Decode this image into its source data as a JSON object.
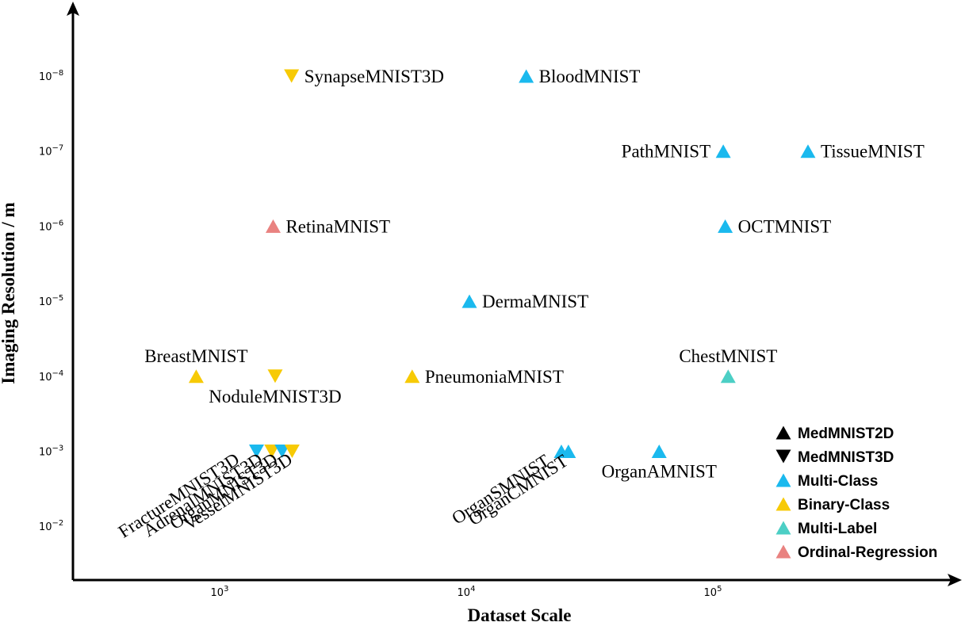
{
  "chart_data": {
    "type": "scatter",
    "xlabel": "Dataset Scale",
    "ylabel": "Imaging Resolution / m",
    "xscale": "log",
    "yscale": "log",
    "y_inverted": true,
    "xlim": [
      300,
      1000000
    ],
    "ylim": [
      0.1,
      1e-09
    ],
    "x_ticks": [
      {
        "value": 1000,
        "base": "10",
        "exp": "3"
      },
      {
        "value": 10000,
        "base": "10",
        "exp": "4"
      },
      {
        "value": 100000,
        "base": "10",
        "exp": "5"
      }
    ],
    "y_ticks": [
      {
        "value": 1e-08,
        "base": "10",
        "exp": "−8"
      },
      {
        "value": 1e-07,
        "base": "10",
        "exp": "−7"
      },
      {
        "value": 1e-06,
        "base": "10",
        "exp": "−6"
      },
      {
        "value": 1e-05,
        "base": "10",
        "exp": "−5"
      },
      {
        "value": 0.0001,
        "base": "10",
        "exp": "−4"
      },
      {
        "value": 0.001,
        "base": "10",
        "exp": "−3"
      },
      {
        "value": 0.01,
        "base": "10",
        "exp": "−2"
      }
    ],
    "colors": {
      "multi_class": "#1ab9ee",
      "binary_class": "#f7ca05",
      "multi_label": "#4ccfc5",
      "ordinal_regression": "#e98280"
    },
    "points": [
      {
        "name": "SynapseMNIST3D",
        "x": 1900,
        "y": 1e-08,
        "dim": "3D",
        "task": "binary_class",
        "label_pos": "right"
      },
      {
        "name": "BloodMNIST",
        "x": 17000,
        "y": 1e-08,
        "dim": "2D",
        "task": "multi_class",
        "label_pos": "right"
      },
      {
        "name": "PathMNIST",
        "x": 107000,
        "y": 1e-07,
        "dim": "2D",
        "task": "multi_class",
        "label_pos": "left"
      },
      {
        "name": "TissueMNIST",
        "x": 236000,
        "y": 1e-07,
        "dim": "2D",
        "task": "multi_class",
        "label_pos": "right"
      },
      {
        "name": "RetinaMNIST",
        "x": 1600,
        "y": 1e-06,
        "dim": "2D",
        "task": "ordinal_regression",
        "label_pos": "right"
      },
      {
        "name": "OCTMNIST",
        "x": 109000,
        "y": 1e-06,
        "dim": "2D",
        "task": "multi_class",
        "label_pos": "right"
      },
      {
        "name": "DermaMNIST",
        "x": 10000,
        "y": 1e-05,
        "dim": "2D",
        "task": "multi_class",
        "label_pos": "right"
      },
      {
        "name": "BreastMNIST",
        "x": 780,
        "y": 0.0001,
        "dim": "2D",
        "task": "binary_class",
        "label_pos": "above"
      },
      {
        "name": "NoduleMNIST3D",
        "x": 1630,
        "y": 0.0001,
        "dim": "3D",
        "task": "binary_class",
        "label_pos": "below"
      },
      {
        "name": "PneumoniaMNIST",
        "x": 5860,
        "y": 0.0001,
        "dim": "2D",
        "task": "binary_class",
        "label_pos": "right"
      },
      {
        "name": "ChestMNIST",
        "x": 112000,
        "y": 0.0001,
        "dim": "2D",
        "task": "multi_label",
        "label_pos": "above"
      },
      {
        "name": "FractureMNIST3D",
        "x": 1370,
        "y": 0.001,
        "dim": "3D",
        "task": "multi_class",
        "label_pos": "rotated"
      },
      {
        "name": "AdrenalMNIST3D",
        "x": 1580,
        "y": 0.001,
        "dim": "3D",
        "task": "binary_class",
        "label_pos": "rotated"
      },
      {
        "name": "OrganMNIST3D",
        "x": 1740,
        "y": 0.001,
        "dim": "3D",
        "task": "multi_class",
        "label_pos": "rotated"
      },
      {
        "name": "VesselMNIST3D",
        "x": 1910,
        "y": 0.001,
        "dim": "3D",
        "task": "binary_class",
        "label_pos": "rotated"
      },
      {
        "name": "OrganSMNIST",
        "x": 25200,
        "y": 0.001,
        "dim": "2D",
        "task": "multi_class",
        "label_pos": "rotated"
      },
      {
        "name": "OrganCMNIST",
        "x": 23600,
        "y": 0.001,
        "dim": "2D",
        "task": "multi_class",
        "label_pos": "rotated"
      },
      {
        "name": "OrganAMNIST",
        "x": 58800,
        "y": 0.001,
        "dim": "2D",
        "task": "multi_class",
        "label_pos": "below"
      }
    ],
    "legend": {
      "placement": "bottom-right",
      "entries": [
        {
          "label": "MedMNIST2D",
          "marker": "triangle-up",
          "color": "#000000"
        },
        {
          "label": "MedMNIST3D",
          "marker": "triangle-down",
          "color": "#000000"
        },
        {
          "label": "Multi-Class",
          "marker": "triangle-up",
          "color": "#1ab9ee"
        },
        {
          "label": "Binary-Class",
          "marker": "triangle-up",
          "color": "#f7ca05"
        },
        {
          "label": "Multi-Label",
          "marker": "triangle-up",
          "color": "#4ccfc5"
        },
        {
          "label": "Ordinal-Regression",
          "marker": "triangle-up",
          "color": "#e98280"
        }
      ]
    }
  }
}
